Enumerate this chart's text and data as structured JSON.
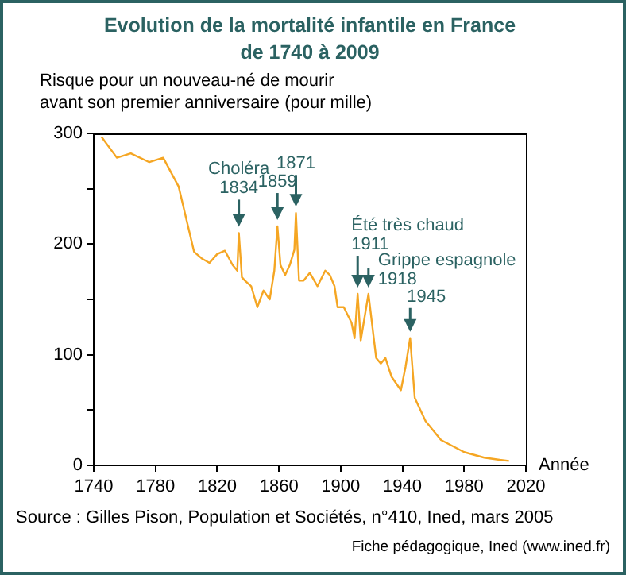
{
  "chart_data": {
    "type": "line",
    "title": "Evolution de la mortalité infantile en France\nde 1740 à 2009",
    "ylabel": "Risque pour un nouveau-né de mourir\navant son premier anniversaire (pour mille)",
    "xlabel": "Année",
    "x": [
      1745,
      1755,
      1764,
      1776,
      1785,
      1795,
      1805,
      1810,
      1815,
      1820,
      1825,
      1830,
      1833,
      1834,
      1836,
      1838,
      1842,
      1846,
      1850,
      1854,
      1857,
      1859,
      1861,
      1864,
      1867,
      1870,
      1871,
      1873,
      1876,
      1880,
      1885,
      1890,
      1893,
      1896,
      1898,
      1902,
      1907,
      1909,
      1911,
      1913,
      1918,
      1921,
      1923,
      1926,
      1929,
      1933,
      1939,
      1942,
      1945,
      1948,
      1955,
      1965,
      1980,
      1993,
      2003,
      2009
    ],
    "series": [
      {
        "color": "#f5a623",
        "values": [
          297,
          278,
          282,
          274,
          278,
          252,
          193,
          187,
          183,
          191,
          194,
          181,
          176,
          210,
          170,
          167,
          162,
          143,
          158,
          150,
          176,
          216,
          181,
          172,
          181,
          195,
          228,
          167,
          167,
          174,
          162,
          176,
          172,
          162,
          143,
          143,
          129,
          115,
          155,
          113,
          155,
          120,
          97,
          92,
          97,
          80,
          68,
          89,
          115,
          61,
          40,
          23,
          12,
          7,
          5,
          4
        ]
      }
    ],
    "xlim": [
      1740,
      2020
    ],
    "xticks": [
      1740,
      1780,
      1820,
      1860,
      1900,
      1940,
      1980,
      2020
    ],
    "ylim": [
      0,
      300
    ],
    "yticks": [
      0,
      {
        "value": 50,
        "label": null
      },
      100,
      {
        "value": 150,
        "label": null
      },
      200,
      {
        "value": 250,
        "label": null
      },
      300
    ],
    "grid": false,
    "legend": false,
    "marker": "none",
    "line_style": "solid",
    "annotations": [
      {
        "text": "Choléra\n1834",
        "x": 1834,
        "y": 210
      },
      {
        "text": "1859",
        "x": 1859,
        "y": 216
      },
      {
        "text": "1871",
        "x": 1871,
        "y": 228
      },
      {
        "text": "Été très chaud\n1911",
        "x": 1911,
        "y": 155
      },
      {
        "text": "Grippe espagnole\n1918",
        "x": 1918,
        "y": 155
      },
      {
        "text": "1945",
        "x": 1945,
        "y": 115
      },
      "Source : Gilles Pison, Population et Sociétés, n°410, Ined, mars 2005",
      "Fiche pédagogique, Ined (www.ined.fr)"
    ]
  }
}
